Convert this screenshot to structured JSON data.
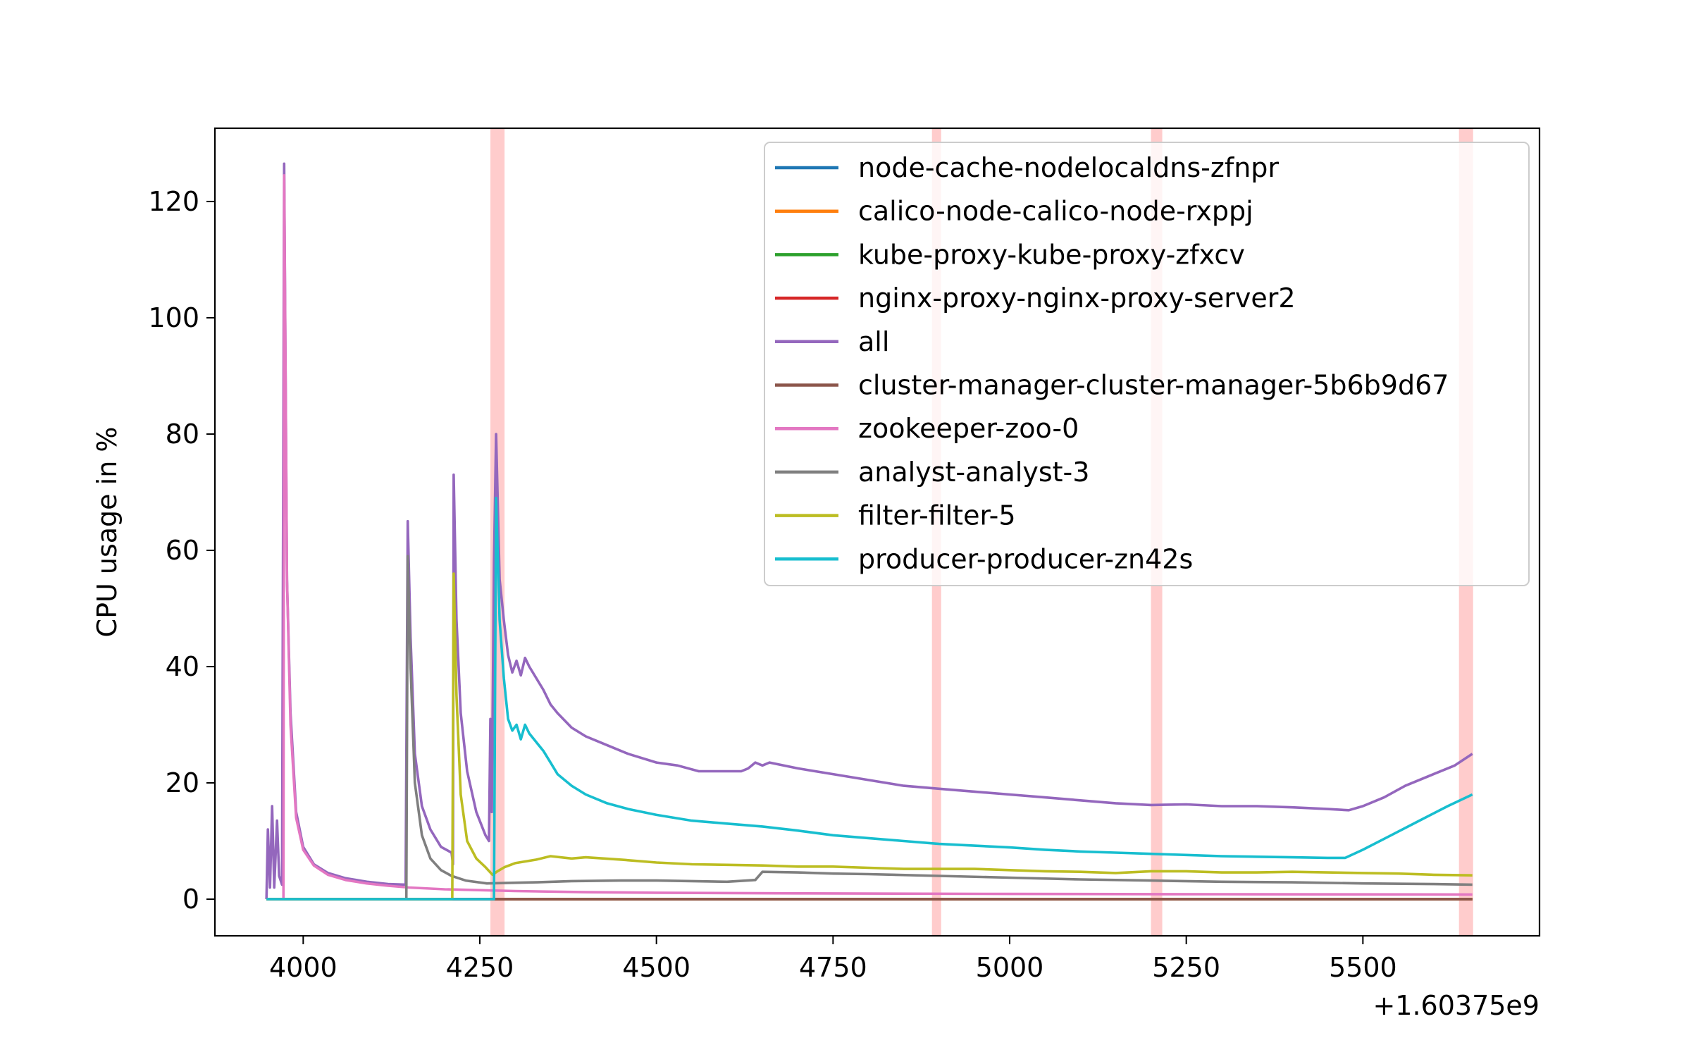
{
  "chart_data": {
    "type": "line",
    "title": "",
    "xlabel": "",
    "ylabel": "CPU usage in %",
    "x_offset_label": "+1.60375e9",
    "xlim": [
      3875,
      5750
    ],
    "ylim": [
      -6.3,
      132.6
    ],
    "xticks": [
      4000,
      4250,
      4500,
      4750,
      5000,
      5250,
      5500
    ],
    "yticks": [
      0,
      20,
      40,
      60,
      80,
      100,
      120
    ],
    "grid": false,
    "legend_position": "upper-right",
    "highlight_color": "#ffcccc",
    "highlight_bands": [
      [
        4265,
        4285
      ],
      [
        4890,
        4903
      ],
      [
        5200,
        5216
      ],
      [
        5636,
        5656
      ]
    ],
    "series": [
      {
        "name": "node-cache-nodelocaldns-zfnpr",
        "color": "#1f77b4",
        "points": [
          [
            3948,
            0
          ],
          [
            5655,
            0
          ]
        ]
      },
      {
        "name": "calico-node-calico-node-rxppj",
        "color": "#ff7f0e",
        "points": [
          [
            3948,
            0
          ],
          [
            5655,
            0
          ]
        ]
      },
      {
        "name": "kube-proxy-kube-proxy-zfxcv",
        "color": "#2ca02c",
        "points": [
          [
            3948,
            0
          ],
          [
            5655,
            0
          ]
        ]
      },
      {
        "name": "nginx-proxy-nginx-proxy-server2",
        "color": "#d62728",
        "points": [
          [
            3948,
            0
          ],
          [
            5655,
            0
          ]
        ]
      },
      {
        "name": "all",
        "color": "#9467bd",
        "points": [
          [
            3948,
            0
          ],
          [
            3950,
            12
          ],
          [
            3953,
            2
          ],
          [
            3956,
            16
          ],
          [
            3959,
            2
          ],
          [
            3963,
            13.5
          ],
          [
            3966,
            4
          ],
          [
            3970,
            2.5
          ],
          [
            3973,
            126.5
          ],
          [
            3977,
            55
          ],
          [
            3982,
            32
          ],
          [
            3990,
            15
          ],
          [
            4000,
            9
          ],
          [
            4015,
            6
          ],
          [
            4035,
            4.5
          ],
          [
            4060,
            3.6
          ],
          [
            4090,
            3
          ],
          [
            4120,
            2.6
          ],
          [
            4145,
            2.5
          ],
          [
            4148,
            65
          ],
          [
            4152,
            45
          ],
          [
            4158,
            25
          ],
          [
            4168,
            16
          ],
          [
            4180,
            12
          ],
          [
            4195,
            9
          ],
          [
            4210,
            8
          ],
          [
            4212,
            6
          ],
          [
            4213,
            73
          ],
          [
            4217,
            48
          ],
          [
            4223,
            32
          ],
          [
            4232,
            22
          ],
          [
            4245,
            15
          ],
          [
            4258,
            11
          ],
          [
            4263,
            10
          ],
          [
            4265,
            31
          ],
          [
            4267,
            15
          ],
          [
            4270,
            58
          ],
          [
            4273,
            80
          ],
          [
            4278,
            55
          ],
          [
            4284,
            48
          ],
          [
            4290,
            42
          ],
          [
            4296,
            39
          ],
          [
            4302,
            41
          ],
          [
            4308,
            38.5
          ],
          [
            4314,
            41.5
          ],
          [
            4320,
            40
          ],
          [
            4330,
            38
          ],
          [
            4340,
            36
          ],
          [
            4350,
            33.5
          ],
          [
            4360,
            32
          ],
          [
            4380,
            29.5
          ],
          [
            4400,
            28
          ],
          [
            4430,
            26.5
          ],
          [
            4460,
            25
          ],
          [
            4500,
            23.5
          ],
          [
            4530,
            23
          ],
          [
            4560,
            22
          ],
          [
            4590,
            22
          ],
          [
            4620,
            22
          ],
          [
            4630,
            22.5
          ],
          [
            4640,
            23.5
          ],
          [
            4650,
            23
          ],
          [
            4660,
            23.5
          ],
          [
            4700,
            22.5
          ],
          [
            4750,
            21.5
          ],
          [
            4800,
            20.5
          ],
          [
            4850,
            19.5
          ],
          [
            4900,
            19
          ],
          [
            4950,
            18.5
          ],
          [
            5000,
            18
          ],
          [
            5050,
            17.5
          ],
          [
            5100,
            17
          ],
          [
            5150,
            16.5
          ],
          [
            5200,
            16.2
          ],
          [
            5250,
            16.3
          ],
          [
            5300,
            16
          ],
          [
            5350,
            16
          ],
          [
            5400,
            15.8
          ],
          [
            5450,
            15.5
          ],
          [
            5480,
            15.3
          ],
          [
            5500,
            16
          ],
          [
            5530,
            17.5
          ],
          [
            5560,
            19.5
          ],
          [
            5600,
            21.5
          ],
          [
            5630,
            23
          ],
          [
            5655,
            25
          ]
        ]
      },
      {
        "name": "cluster-manager-cluster-manager-5b6b9d67",
        "color": "#8c564b",
        "points": [
          [
            3948,
            0
          ],
          [
            5655,
            0
          ]
        ]
      },
      {
        "name": "zookeeper-zoo-0",
        "color": "#e377c2",
        "points": [
          [
            3948,
            0
          ],
          [
            3972,
            0
          ],
          [
            3973,
            124.5
          ],
          [
            3977,
            55
          ],
          [
            3982,
            30
          ],
          [
            3990,
            14
          ],
          [
            4000,
            8.5
          ],
          [
            4015,
            5.8
          ],
          [
            4035,
            4.2
          ],
          [
            4060,
            3.3
          ],
          [
            4090,
            2.7
          ],
          [
            4120,
            2.3
          ],
          [
            4150,
            2.0
          ],
          [
            4200,
            1.7
          ],
          [
            4300,
            1.4
          ],
          [
            4400,
            1.2
          ],
          [
            4500,
            1.1
          ],
          [
            4700,
            1.0
          ],
          [
            5000,
            0.9
          ],
          [
            5300,
            0.85
          ],
          [
            5655,
            0.8
          ]
        ]
      },
      {
        "name": "analyst-analyst-3",
        "color": "#7f7f7f",
        "points": [
          [
            3948,
            0
          ],
          [
            4146,
            0
          ],
          [
            4148,
            59
          ],
          [
            4152,
            40
          ],
          [
            4158,
            20
          ],
          [
            4168,
            11
          ],
          [
            4180,
            7
          ],
          [
            4195,
            5
          ],
          [
            4210,
            4
          ],
          [
            4230,
            3.2
          ],
          [
            4260,
            2.7
          ],
          [
            4290,
            2.8
          ],
          [
            4330,
            2.9
          ],
          [
            4380,
            3.1
          ],
          [
            4450,
            3.2
          ],
          [
            4500,
            3.2
          ],
          [
            4550,
            3.1
          ],
          [
            4600,
            3.0
          ],
          [
            4640,
            3.3
          ],
          [
            4650,
            4.7
          ],
          [
            4700,
            4.6
          ],
          [
            4750,
            4.4
          ],
          [
            4800,
            4.3
          ],
          [
            4900,
            4.0
          ],
          [
            5000,
            3.7
          ],
          [
            5100,
            3.4
          ],
          [
            5200,
            3.2
          ],
          [
            5300,
            3.0
          ],
          [
            5400,
            2.9
          ],
          [
            5500,
            2.7
          ],
          [
            5600,
            2.6
          ],
          [
            5655,
            2.5
          ]
        ]
      },
      {
        "name": "filter-filter-5",
        "color": "#bcbd22",
        "points": [
          [
            3948,
            0
          ],
          [
            4211,
            0
          ],
          [
            4213,
            56
          ],
          [
            4217,
            35
          ],
          [
            4223,
            18
          ],
          [
            4232,
            10
          ],
          [
            4245,
            7
          ],
          [
            4258,
            5.5
          ],
          [
            4268,
            4.2
          ],
          [
            4275,
            4.8
          ],
          [
            4285,
            5.5
          ],
          [
            4300,
            6.2
          ],
          [
            4330,
            6.8
          ],
          [
            4350,
            7.4
          ],
          [
            4380,
            7
          ],
          [
            4400,
            7.2
          ],
          [
            4450,
            6.8
          ],
          [
            4500,
            6.3
          ],
          [
            4550,
            6
          ],
          [
            4600,
            5.9
          ],
          [
            4650,
            5.8
          ],
          [
            4700,
            5.6
          ],
          [
            4750,
            5.6
          ],
          [
            4800,
            5.4
          ],
          [
            4850,
            5.2
          ],
          [
            4900,
            5.2
          ],
          [
            4950,
            5.2
          ],
          [
            5000,
            5
          ],
          [
            5050,
            4.8
          ],
          [
            5100,
            4.7
          ],
          [
            5150,
            4.5
          ],
          [
            5200,
            4.8
          ],
          [
            5250,
            4.8
          ],
          [
            5300,
            4.6
          ],
          [
            5350,
            4.6
          ],
          [
            5400,
            4.7
          ],
          [
            5450,
            4.6
          ],
          [
            5500,
            4.5
          ],
          [
            5550,
            4.4
          ],
          [
            5600,
            4.2
          ],
          [
            5655,
            4.1
          ]
        ]
      },
      {
        "name": "producer-producer-zn42s",
        "color": "#17becf",
        "points": [
          [
            3948,
            0
          ],
          [
            4270,
            0
          ],
          [
            4273,
            69
          ],
          [
            4278,
            48
          ],
          [
            4284,
            38
          ],
          [
            4290,
            31
          ],
          [
            4296,
            29
          ],
          [
            4302,
            30
          ],
          [
            4308,
            27.5
          ],
          [
            4314,
            30
          ],
          [
            4320,
            28.5
          ],
          [
            4330,
            27
          ],
          [
            4340,
            25.5
          ],
          [
            4350,
            23.5
          ],
          [
            4360,
            21.5
          ],
          [
            4380,
            19.5
          ],
          [
            4400,
            18
          ],
          [
            4430,
            16.5
          ],
          [
            4460,
            15.5
          ],
          [
            4500,
            14.5
          ],
          [
            4550,
            13.5
          ],
          [
            4600,
            13
          ],
          [
            4650,
            12.5
          ],
          [
            4700,
            11.8
          ],
          [
            4750,
            11
          ],
          [
            4800,
            10.5
          ],
          [
            4850,
            10
          ],
          [
            4900,
            9.5
          ],
          [
            4950,
            9.2
          ],
          [
            5000,
            8.9
          ],
          [
            5050,
            8.5
          ],
          [
            5100,
            8.2
          ],
          [
            5150,
            8
          ],
          [
            5200,
            7.8
          ],
          [
            5250,
            7.6
          ],
          [
            5300,
            7.4
          ],
          [
            5350,
            7.3
          ],
          [
            5400,
            7.2
          ],
          [
            5450,
            7.1
          ],
          [
            5475,
            7.1
          ],
          [
            5500,
            8.5
          ],
          [
            5540,
            11
          ],
          [
            5580,
            13.5
          ],
          [
            5620,
            16
          ],
          [
            5655,
            18
          ]
        ]
      }
    ]
  }
}
